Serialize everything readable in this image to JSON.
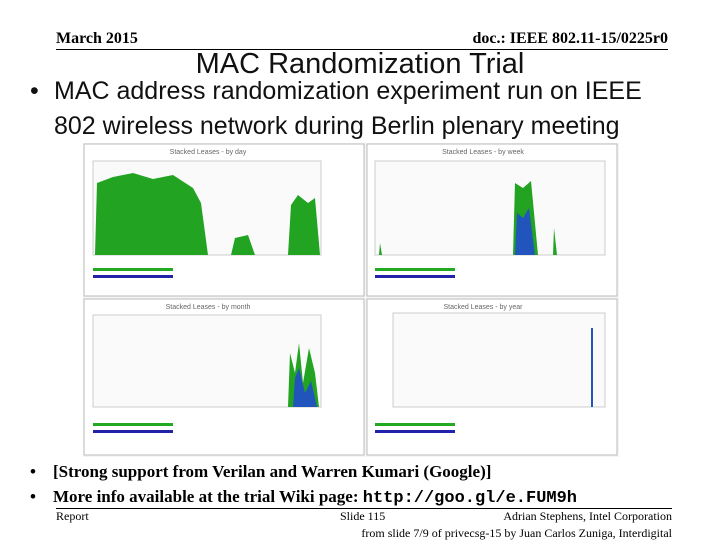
{
  "header": {
    "date": "March 2015",
    "doc": "doc.: IEEE 802.11-15/0225r0"
  },
  "title": "MAC Randomization Trial",
  "bullets": [
    "MAC address randomization experiment run on IEEE 802 wireless network during Berlin plenary meeting"
  ],
  "panels": [
    "Stacked Leases - by day",
    "Stacked Leases - by week",
    "Stacked Leases - by month",
    "Stacked Leases - by year"
  ],
  "sub_bullets": [
    {
      "text": "[Strong support from Verilan and Warren Kumari (Google)]"
    },
    {
      "text": "More info available at the trial Wiki page: ",
      "link": "http://goo.gl/e.FUM9h"
    }
  ],
  "footer": {
    "left": "Report",
    "center": "Slide 115",
    "right": "Adrian Stephens, Intel Corporation",
    "source": "from slide 7/9 of privecsg-15 by Juan Carlos Zuniga, Interdigital"
  }
}
